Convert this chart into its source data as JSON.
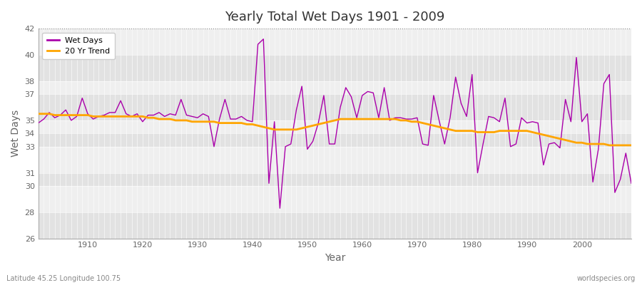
{
  "title": "Yearly Total Wet Days 1901 - 2009",
  "xlabel": "Year",
  "ylabel": "Wet Days",
  "footnote_left": "Latitude 45.25 Longitude 100.75",
  "footnote_right": "worldspecies.org",
  "wet_days_color": "#AA00AA",
  "trend_color": "#FFA500",
  "bg_light": "#EFEFEF",
  "bg_dark": "#E2E2E2",
  "grid_color": "#FFFFFF",
  "fig_bg": "#FFFFFF",
  "ylim": [
    26,
    42
  ],
  "yticks": [
    26,
    28,
    30,
    31,
    33,
    34,
    35,
    37,
    38,
    40,
    42
  ],
  "years": [
    1901,
    1902,
    1903,
    1904,
    1905,
    1906,
    1907,
    1908,
    1909,
    1910,
    1911,
    1912,
    1913,
    1914,
    1915,
    1916,
    1917,
    1918,
    1919,
    1920,
    1921,
    1922,
    1923,
    1924,
    1925,
    1926,
    1927,
    1928,
    1929,
    1930,
    1931,
    1932,
    1933,
    1934,
    1935,
    1936,
    1937,
    1938,
    1939,
    1940,
    1941,
    1942,
    1943,
    1944,
    1945,
    1946,
    1947,
    1948,
    1949,
    1950,
    1951,
    1952,
    1953,
    1954,
    1955,
    1956,
    1957,
    1958,
    1959,
    1960,
    1961,
    1962,
    1963,
    1964,
    1965,
    1966,
    1967,
    1968,
    1969,
    1970,
    1971,
    1972,
    1973,
    1974,
    1975,
    1976,
    1977,
    1978,
    1979,
    1980,
    1981,
    1982,
    1983,
    1984,
    1985,
    1986,
    1987,
    1988,
    1989,
    1990,
    1991,
    1992,
    1993,
    1994,
    1995,
    1996,
    1997,
    1998,
    1999,
    2000,
    2001,
    2002,
    2003,
    2004,
    2005,
    2006,
    2007,
    2008,
    2009
  ],
  "wet_days": [
    34.8,
    35.1,
    35.6,
    35.2,
    35.4,
    35.8,
    35.0,
    35.3,
    36.7,
    35.5,
    35.1,
    35.3,
    35.4,
    35.6,
    35.6,
    36.5,
    35.5,
    35.3,
    35.5,
    34.9,
    35.4,
    35.4,
    35.6,
    35.3,
    35.5,
    35.4,
    36.6,
    35.4,
    35.3,
    35.2,
    35.5,
    35.3,
    33.0,
    35.1,
    36.6,
    35.1,
    35.1,
    35.3,
    35.0,
    34.9,
    40.8,
    41.2,
    30.2,
    34.9,
    28.3,
    33.0,
    33.2,
    35.8,
    37.6,
    32.8,
    33.4,
    34.8,
    36.9,
    33.2,
    33.2,
    36.0,
    37.5,
    36.8,
    35.2,
    36.9,
    37.2,
    37.1,
    35.2,
    37.5,
    35.0,
    35.2,
    35.2,
    35.1,
    35.1,
    35.2,
    33.2,
    33.1,
    36.9,
    35.0,
    33.2,
    35.2,
    38.3,
    36.3,
    35.3,
    38.5,
    31.0,
    33.2,
    35.3,
    35.2,
    34.9,
    36.7,
    33.0,
    33.2,
    35.2,
    34.8,
    34.9,
    34.8,
    31.6,
    33.2,
    33.3,
    32.9,
    36.6,
    34.9,
    39.8,
    34.9,
    35.5,
    30.3,
    32.8,
    37.8,
    38.5,
    29.5,
    30.5,
    32.5,
    30.2
  ],
  "trend": [
    35.5,
    35.5,
    35.5,
    35.4,
    35.4,
    35.4,
    35.4,
    35.4,
    35.4,
    35.4,
    35.3,
    35.3,
    35.3,
    35.3,
    35.3,
    35.3,
    35.3,
    35.3,
    35.3,
    35.3,
    35.2,
    35.2,
    35.1,
    35.1,
    35.1,
    35.0,
    35.0,
    35.0,
    34.9,
    34.9,
    34.9,
    34.9,
    34.9,
    34.8,
    34.8,
    34.8,
    34.8,
    34.8,
    34.7,
    34.7,
    34.6,
    34.5,
    34.4,
    34.3,
    34.3,
    34.3,
    34.3,
    34.3,
    34.4,
    34.5,
    34.6,
    34.7,
    34.8,
    34.9,
    35.0,
    35.1,
    35.1,
    35.1,
    35.1,
    35.1,
    35.1,
    35.1,
    35.1,
    35.1,
    35.1,
    35.1,
    35.0,
    35.0,
    34.9,
    34.9,
    34.8,
    34.7,
    34.6,
    34.5,
    34.4,
    34.3,
    34.2,
    34.2,
    34.2,
    34.2,
    34.1,
    34.1,
    34.1,
    34.1,
    34.2,
    34.2,
    34.2,
    34.2,
    34.2,
    34.2,
    34.1,
    34.0,
    33.9,
    33.8,
    33.7,
    33.6,
    33.5,
    33.4,
    33.3,
    33.3,
    33.2,
    33.2,
    33.2,
    33.2,
    33.1,
    33.1,
    33.1,
    33.1,
    33.1
  ]
}
